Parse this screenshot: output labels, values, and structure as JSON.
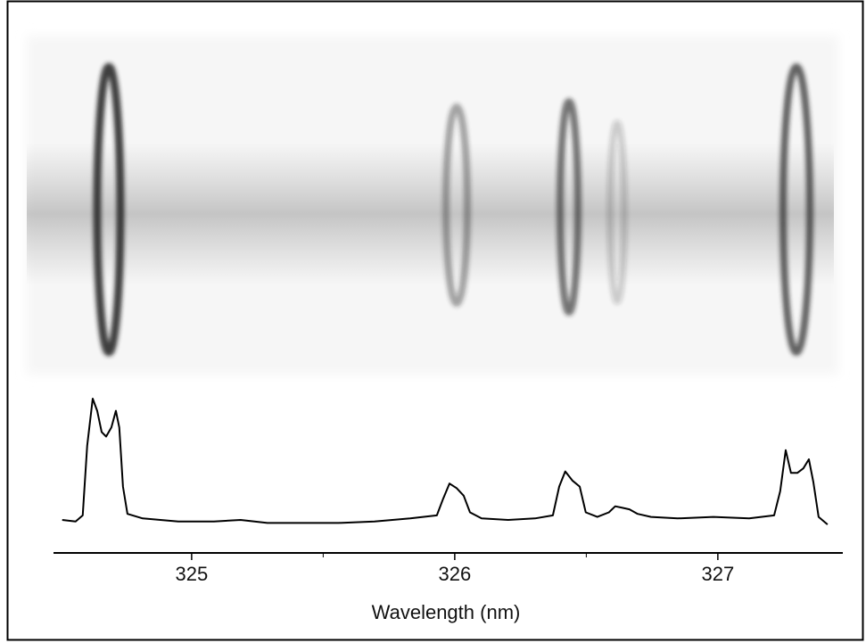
{
  "chart_data": {
    "type": "line",
    "x_label": "Wavelength (nm)",
    "xlim": [
      324.475,
      327.475
    ],
    "xticks": [
      325,
      326,
      327
    ],
    "minor_xticks": [
      325.5,
      326.5
    ],
    "ylim": [
      0,
      1
    ],
    "color": "#000000",
    "x": [
      324.508,
      324.559,
      324.586,
      324.603,
      324.624,
      324.641,
      324.658,
      324.675,
      324.695,
      324.712,
      324.725,
      324.739,
      324.756,
      324.814,
      324.949,
      325.085,
      325.186,
      325.288,
      325.424,
      325.559,
      325.695,
      325.831,
      325.932,
      325.956,
      325.98,
      326.007,
      326.034,
      326.058,
      326.102,
      326.203,
      326.305,
      326.373,
      326.397,
      326.42,
      326.447,
      326.475,
      326.498,
      326.542,
      326.586,
      326.61,
      326.637,
      326.664,
      326.695,
      326.746,
      326.847,
      326.983,
      327.119,
      327.214,
      327.237,
      327.258,
      327.278,
      327.302,
      327.325,
      327.346,
      327.363,
      327.383,
      327.417
    ],
    "values": [
      0.1,
      0.09,
      0.13,
      0.59,
      0.9,
      0.82,
      0.68,
      0.65,
      0.71,
      0.82,
      0.71,
      0.32,
      0.14,
      0.11,
      0.09,
      0.09,
      0.1,
      0.08,
      0.08,
      0.08,
      0.09,
      0.11,
      0.13,
      0.24,
      0.34,
      0.31,
      0.26,
      0.15,
      0.11,
      0.1,
      0.11,
      0.13,
      0.32,
      0.42,
      0.36,
      0.32,
      0.15,
      0.12,
      0.15,
      0.19,
      0.18,
      0.17,
      0.14,
      0.12,
      0.11,
      0.12,
      0.11,
      0.13,
      0.29,
      0.56,
      0.41,
      0.41,
      0.44,
      0.5,
      0.35,
      0.12,
      0.07
    ]
  }
}
